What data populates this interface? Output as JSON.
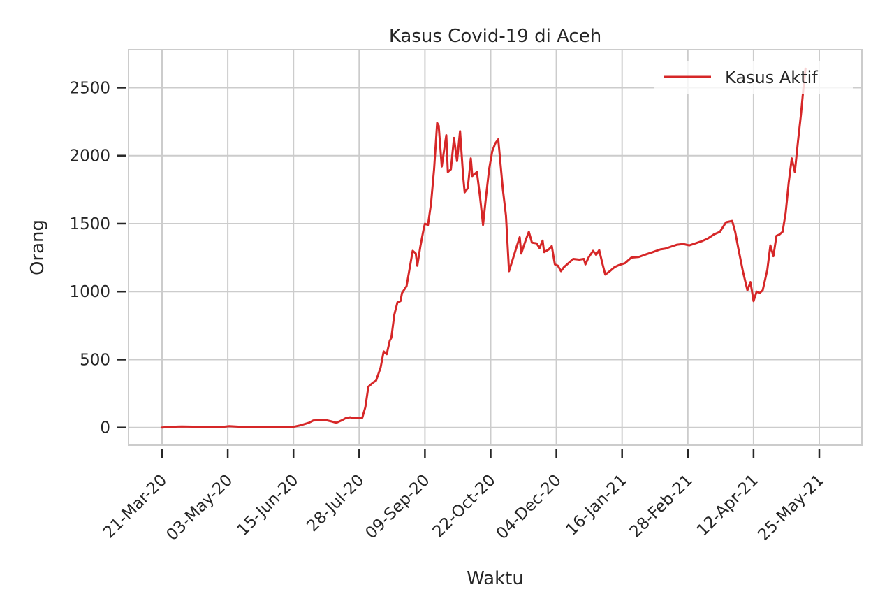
{
  "chart_data": {
    "type": "line",
    "title": "Kasus Covid-19 di Aceh",
    "xlabel": "Waktu",
    "ylabel": "Orang",
    "x_start": "2020-03-21",
    "x_end": "2021-05-25",
    "x_ticks": [
      "21-Mar-20",
      "03-May-20",
      "15-Jun-20",
      "28-Jul-20",
      "09-Sep-20",
      "22-Oct-20",
      "04-Dec-20",
      "16-Jan-21",
      "28-Feb-21",
      "12-Apr-21",
      "25-May-21"
    ],
    "y_ticks": [
      0,
      500,
      1000,
      1500,
      2000,
      2500
    ],
    "ylim": [
      -130,
      2780
    ],
    "grid": true,
    "legend_position": "top-right",
    "series": [
      {
        "name": "Kasus Aktif",
        "color": "#d62728",
        "points": [
          [
            "2020-03-21",
            0
          ],
          [
            "2020-03-27",
            5
          ],
          [
            "2020-04-03",
            8
          ],
          [
            "2020-04-10",
            6
          ],
          [
            "2020-04-17",
            2
          ],
          [
            "2020-04-24",
            4
          ],
          [
            "2020-05-01",
            6
          ],
          [
            "2020-05-04",
            10
          ],
          [
            "2020-05-10",
            6
          ],
          [
            "2020-05-20",
            3
          ],
          [
            "2020-06-01",
            3
          ],
          [
            "2020-06-15",
            5
          ],
          [
            "2020-06-19",
            15
          ],
          [
            "2020-06-22",
            25
          ],
          [
            "2020-06-25",
            35
          ],
          [
            "2020-06-28",
            52
          ],
          [
            "2020-07-06",
            55
          ],
          [
            "2020-07-10",
            45
          ],
          [
            "2020-07-13",
            35
          ],
          [
            "2020-07-17",
            55
          ],
          [
            "2020-07-19",
            68
          ],
          [
            "2020-07-22",
            75
          ],
          [
            "2020-07-25",
            68
          ],
          [
            "2020-07-30",
            72
          ],
          [
            "2020-08-01",
            150
          ],
          [
            "2020-08-03",
            300
          ],
          [
            "2020-08-06",
            330
          ],
          [
            "2020-08-08",
            345
          ],
          [
            "2020-08-11",
            440
          ],
          [
            "2020-08-13",
            560
          ],
          [
            "2020-08-15",
            540
          ],
          [
            "2020-08-17",
            640
          ],
          [
            "2020-08-18",
            660
          ],
          [
            "2020-08-20",
            830
          ],
          [
            "2020-08-22",
            920
          ],
          [
            "2020-08-24",
            930
          ],
          [
            "2020-08-25",
            990
          ],
          [
            "2020-08-28",
            1040
          ],
          [
            "2020-08-30",
            1170
          ],
          [
            "2020-09-01",
            1300
          ],
          [
            "2020-09-03",
            1280
          ],
          [
            "2020-09-04",
            1190
          ],
          [
            "2020-09-06",
            1330
          ],
          [
            "2020-09-08",
            1450
          ],
          [
            "2020-09-09",
            1500
          ],
          [
            "2020-09-11",
            1490
          ],
          [
            "2020-09-13",
            1650
          ],
          [
            "2020-09-15",
            1900
          ],
          [
            "2020-09-17",
            2240
          ],
          [
            "2020-09-18",
            2220
          ],
          [
            "2020-09-20",
            1920
          ],
          [
            "2020-09-21",
            2000
          ],
          [
            "2020-09-23",
            2150
          ],
          [
            "2020-09-24",
            1880
          ],
          [
            "2020-09-26",
            1900
          ],
          [
            "2020-09-28",
            2130
          ],
          [
            "2020-09-30",
            1960
          ],
          [
            "2020-10-02",
            2180
          ],
          [
            "2020-10-04",
            1850
          ],
          [
            "2020-10-05",
            1730
          ],
          [
            "2020-10-07",
            1760
          ],
          [
            "2020-10-09",
            1980
          ],
          [
            "2020-10-10",
            1850
          ],
          [
            "2020-10-13",
            1880
          ],
          [
            "2020-10-15",
            1700
          ],
          [
            "2020-10-17",
            1490
          ],
          [
            "2020-10-19",
            1700
          ],
          [
            "2020-10-21",
            1900
          ],
          [
            "2020-10-23",
            2030
          ],
          [
            "2020-10-25",
            2090
          ],
          [
            "2020-10-27",
            2120
          ],
          [
            "2020-10-30",
            1750
          ],
          [
            "2020-11-01",
            1560
          ],
          [
            "2020-11-03",
            1150
          ],
          [
            "2020-11-05",
            1220
          ],
          [
            "2020-11-08",
            1330
          ],
          [
            "2020-11-10",
            1400
          ],
          [
            "2020-11-11",
            1280
          ],
          [
            "2020-11-14",
            1380
          ],
          [
            "2020-11-16",
            1440
          ],
          [
            "2020-11-18",
            1360
          ],
          [
            "2020-11-21",
            1355
          ],
          [
            "2020-11-23",
            1320
          ],
          [
            "2020-11-25",
            1375
          ],
          [
            "2020-11-26",
            1290
          ],
          [
            "2020-11-29",
            1310
          ],
          [
            "2020-12-01",
            1335
          ],
          [
            "2020-12-03",
            1200
          ],
          [
            "2020-12-05",
            1190
          ],
          [
            "2020-12-07",
            1150
          ],
          [
            "2020-12-09",
            1180
          ],
          [
            "2020-12-12",
            1210
          ],
          [
            "2020-12-15",
            1240
          ],
          [
            "2020-12-19",
            1235
          ],
          [
            "2020-12-22",
            1240
          ],
          [
            "2020-12-23",
            1200
          ],
          [
            "2020-12-25",
            1250
          ],
          [
            "2020-12-28",
            1300
          ],
          [
            "2020-12-30",
            1270
          ],
          [
            "2021-01-01",
            1305
          ],
          [
            "2021-01-03",
            1210
          ],
          [
            "2021-01-05",
            1125
          ],
          [
            "2021-01-08",
            1150
          ],
          [
            "2021-01-11",
            1180
          ],
          [
            "2021-01-14",
            1195
          ],
          [
            "2021-01-18",
            1210
          ],
          [
            "2021-01-22",
            1250
          ],
          [
            "2021-01-27",
            1255
          ],
          [
            "2021-02-01",
            1275
          ],
          [
            "2021-02-05",
            1290
          ],
          [
            "2021-02-10",
            1310
          ],
          [
            "2021-02-13",
            1315
          ],
          [
            "2021-02-17",
            1330
          ],
          [
            "2021-02-21",
            1345
          ],
          [
            "2021-02-25",
            1350
          ],
          [
            "2021-03-01",
            1340
          ],
          [
            "2021-03-05",
            1355
          ],
          [
            "2021-03-09",
            1370
          ],
          [
            "2021-03-13",
            1390
          ],
          [
            "2021-03-17",
            1420
          ],
          [
            "2021-03-21",
            1440
          ],
          [
            "2021-03-25",
            1510
          ],
          [
            "2021-03-29",
            1520
          ],
          [
            "2021-03-31",
            1440
          ],
          [
            "2021-04-02",
            1320
          ],
          [
            "2021-04-05",
            1150
          ],
          [
            "2021-04-08",
            1010
          ],
          [
            "2021-04-10",
            1070
          ],
          [
            "2021-04-12",
            930
          ],
          [
            "2021-04-14",
            1000
          ],
          [
            "2021-04-16",
            990
          ],
          [
            "2021-04-18",
            1010
          ],
          [
            "2021-04-21",
            1160
          ],
          [
            "2021-04-23",
            1340
          ],
          [
            "2021-04-25",
            1260
          ],
          [
            "2021-04-27",
            1410
          ],
          [
            "2021-04-29",
            1420
          ],
          [
            "2021-05-01",
            1440
          ],
          [
            "2021-05-03",
            1580
          ],
          [
            "2021-05-05",
            1800
          ],
          [
            "2021-05-07",
            1980
          ],
          [
            "2021-05-09",
            1880
          ],
          [
            "2021-05-11",
            2100
          ],
          [
            "2021-05-13",
            2300
          ],
          [
            "2021-05-15",
            2540
          ],
          [
            "2021-05-16",
            2640
          ]
        ]
      }
    ]
  }
}
